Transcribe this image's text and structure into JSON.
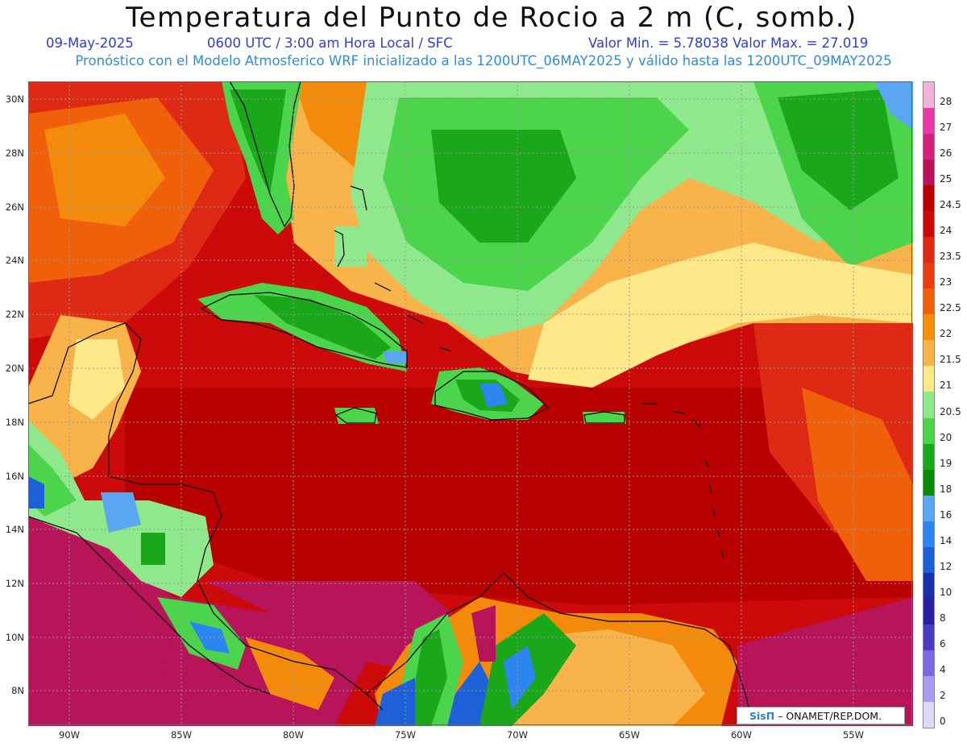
{
  "header": {
    "title": "Temperatura del Punto de Rocio a 2 m (C, somb.)",
    "date": "09-May-2025",
    "time": "0600 UTC / 3:00 am Hora Local / SFC",
    "range": "Valor Min. = 5.78038  Valor Max. = 27.019",
    "model": "Pronóstico con el Modelo Atmosferico WRF inicializado a las 1200UTC_06MAY2025 y válido hasta las  1200UTC_09MAY2025"
  },
  "map": {
    "lat_labels": [
      "30N",
      "28N",
      "26N",
      "24N",
      "22N",
      "20N",
      "18N",
      "16N",
      "14N",
      "12N",
      "10N",
      "8N"
    ],
    "lon_labels": [
      "90W",
      "85W",
      "80W",
      "75W",
      "70W",
      "65W",
      "60W",
      "55W"
    ],
    "regions": [
      "florida",
      "cuba",
      "bahamas",
      "hispaniola",
      "jamaica",
      "puerto-rico",
      "yucatan",
      "central-america",
      "colombia",
      "venezuela",
      "lesser-antilles"
    ]
  },
  "colorbar": {
    "labels": [
      "28",
      "27",
      "26",
      "25",
      "24.5",
      "24",
      "23.5",
      "23",
      "22.5",
      "22",
      "21.5",
      "21",
      "20.5",
      "20",
      "19",
      "18",
      "16",
      "14",
      "12",
      "10",
      "8",
      "6",
      "4",
      "2",
      "0"
    ],
    "colors": [
      "#f2b2d8",
      "#e83aa6",
      "#d4227c",
      "#b8145a",
      "#b80000",
      "#cc0a0a",
      "#de2a14",
      "#e64012",
      "#f0600a",
      "#f4900c",
      "#f8b44a",
      "#fde88a",
      "#90e88c",
      "#4cd44c",
      "#1aa81a",
      "#0a8a0a",
      "#5aa6f2",
      "#2d86f0",
      "#1e60d8",
      "#1a2fa8",
      "#2a1ea4",
      "#4b3cc4",
      "#7a6ae0",
      "#a99cf0",
      "#dcdaf8"
    ]
  },
  "credit": {
    "brand": "SisΠ",
    "text": "– ONAMET/REP.DOM."
  }
}
